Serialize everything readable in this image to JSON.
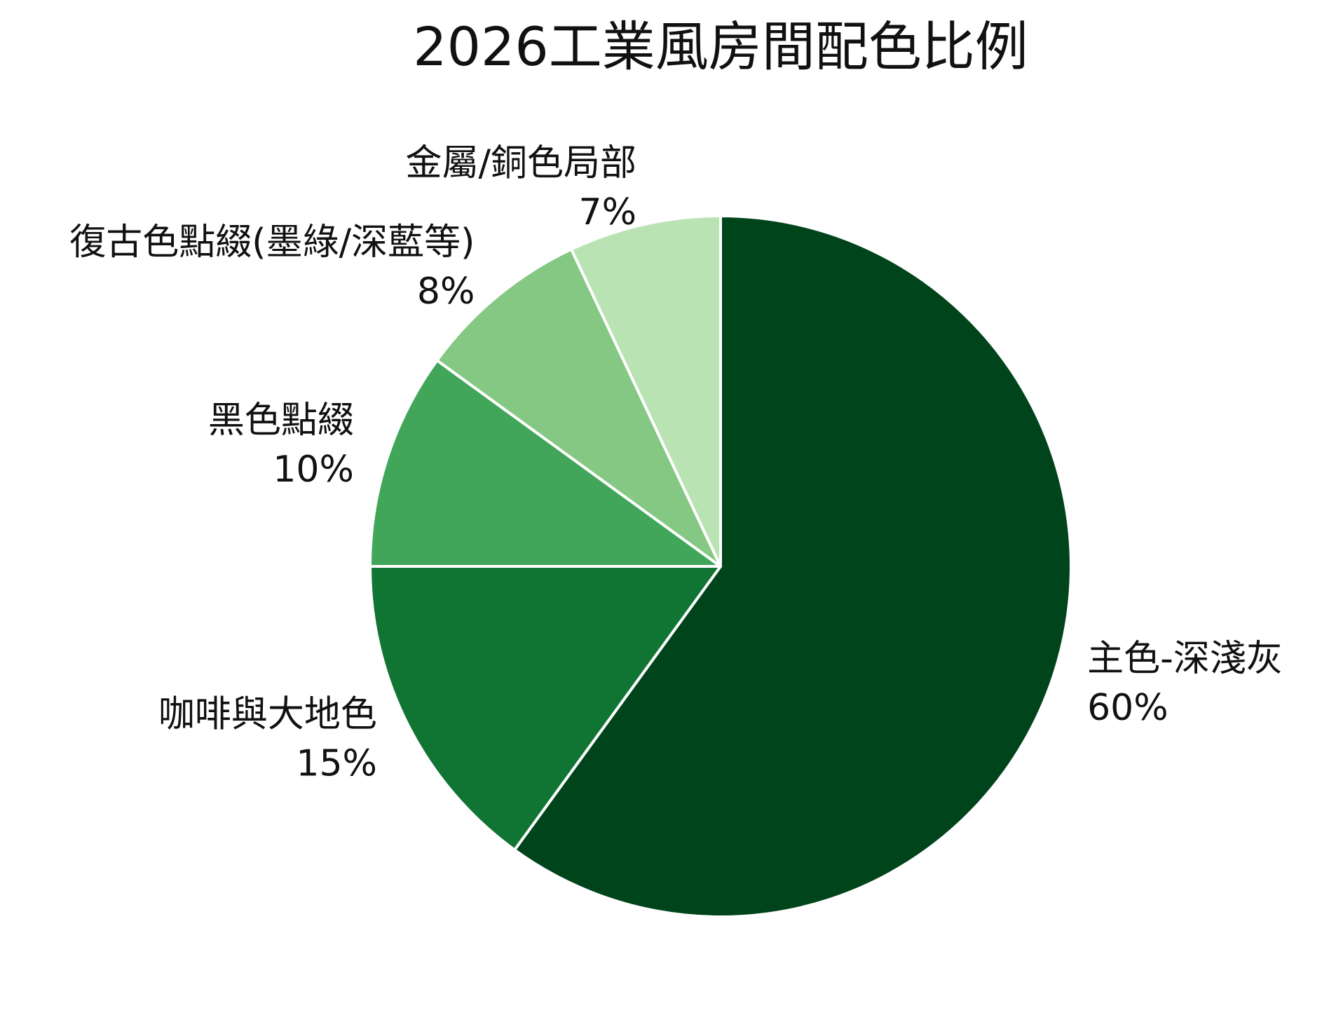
{
  "chart_data": {
    "type": "pie",
    "title": "2026工業風房間配色比例",
    "categories": [
      "主色-深淺灰",
      "咖啡與大地色",
      "黑色點綴",
      "復古色點綴(墨綠/深藍等)",
      "金屬/銅色局部"
    ],
    "values": [
      60,
      15,
      10,
      8,
      7
    ],
    "value_labels": [
      "60%",
      "15%",
      "10%",
      "8%",
      "7%"
    ],
    "colors": [
      "#00441b",
      "#107533",
      "#41a65a",
      "#84c883",
      "#b9e3b3"
    ]
  }
}
